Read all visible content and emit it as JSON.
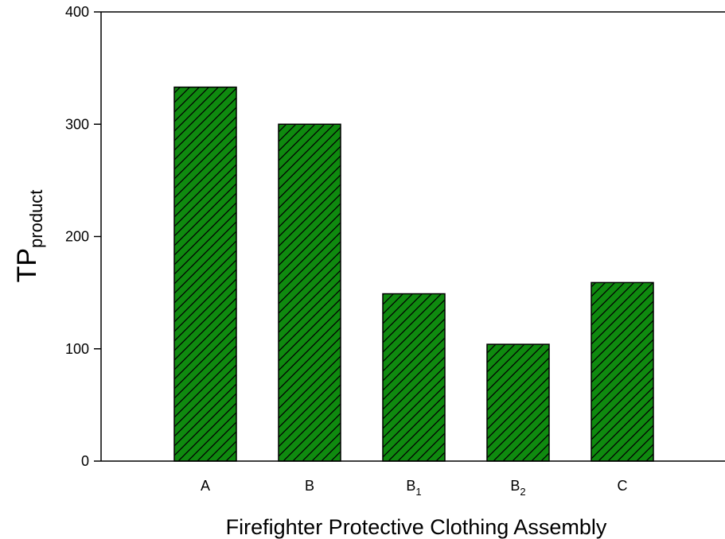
{
  "chart_data": {
    "type": "bar",
    "categories": [
      {
        "base": "A",
        "sub": ""
      },
      {
        "base": "B",
        "sub": ""
      },
      {
        "base": "B",
        "sub": "1"
      },
      {
        "base": "B",
        "sub": "2"
      },
      {
        "base": "C",
        "sub": ""
      }
    ],
    "values": [
      333,
      300,
      149,
      104,
      159
    ],
    "xlabel": "Firefighter Protective Clothing Assembly",
    "ylabel": {
      "main": "TP",
      "sub": "product"
    },
    "ylim": [
      0,
      400
    ],
    "yticks": [
      "0",
      "100",
      "200",
      "300",
      "400"
    ],
    "grid": false,
    "legend": "none",
    "bar_fill_color": "#0f8a0f",
    "bar_hatch_color": "#000000",
    "bar_hatch": "diagonal"
  }
}
